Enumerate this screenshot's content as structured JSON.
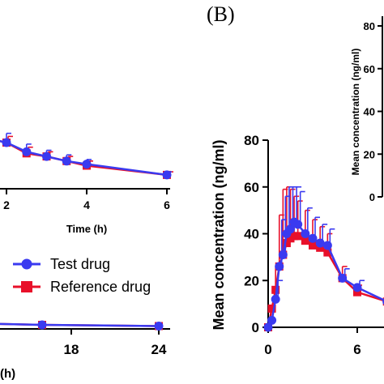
{
  "panel_label": "(B)",
  "legend": {
    "test": "Test drug",
    "reference": "Reference drug"
  },
  "colors": {
    "test": "#3a3af0",
    "reference": "#e8102a",
    "line": "#5533cc"
  },
  "chart_data": [
    {
      "name": "panel-a-inset",
      "type": "line",
      "xlabel": "Time (h)",
      "ylabel": "",
      "xlim": [
        0,
        6
      ],
      "xticks": [
        "2",
        "4",
        "6"
      ],
      "x": [
        1.5,
        2.0,
        2.5,
        3.0,
        3.5,
        4.0,
        6.0
      ],
      "series": [
        {
          "name": "Test drug",
          "values": [
            33,
            30,
            24,
            21,
            18,
            16,
            9
          ],
          "err": [
            7,
            6,
            5,
            4,
            4,
            3,
            2
          ]
        },
        {
          "name": "Reference drug",
          "values": [
            33,
            30,
            23,
            21,
            18,
            15,
            9
          ],
          "err": [
            4,
            4,
            4,
            3,
            3,
            3,
            2
          ]
        }
      ]
    },
    {
      "name": "panel-a-main",
      "type": "line",
      "xlabel": "(h)",
      "ylabel": "",
      "xlim": [
        12,
        24
      ],
      "xticks": [
        "18",
        "24"
      ],
      "x": [
        12,
        16,
        24
      ],
      "series": [
        {
          "name": "Test drug",
          "values": [
            3,
            2,
            1
          ]
        },
        {
          "name": "Reference drug",
          "values": [
            3,
            2,
            1
          ]
        }
      ]
    },
    {
      "name": "panel-b-main",
      "type": "line",
      "xlabel": "",
      "ylabel": "Mean concentration (ng/ml)",
      "xlim": [
        0,
        8
      ],
      "ylim": [
        0,
        80
      ],
      "xticks": [
        "0",
        "6"
      ],
      "yticks": [
        "0",
        "20",
        "40",
        "60",
        "80"
      ],
      "x": [
        0,
        0.25,
        0.5,
        0.75,
        1.0,
        1.25,
        1.5,
        1.75,
        2.0,
        2.5,
        3.0,
        3.5,
        4.0,
        5.0,
        6.0,
        8.0
      ],
      "series": [
        {
          "name": "Test drug",
          "values": [
            0,
            3,
            12,
            26,
            31,
            40,
            42,
            45,
            44,
            40,
            38,
            36,
            35,
            21,
            17,
            11
          ],
          "err": [
            0,
            0,
            8,
            20,
            25,
            20,
            18,
            15,
            14,
            11,
            9,
            8,
            7,
            4,
            3,
            2
          ]
        },
        {
          "name": "Reference drug",
          "values": [
            0,
            8,
            16,
            26,
            31,
            36,
            38,
            39,
            39,
            37,
            35,
            34,
            32,
            21,
            15,
            11
          ],
          "err": [
            0,
            0,
            10,
            22,
            28,
            24,
            21,
            17,
            15,
            13,
            11,
            9,
            8,
            5,
            3,
            2
          ]
        }
      ]
    },
    {
      "name": "panel-b-inset",
      "type": "line",
      "xlabel": "",
      "ylabel": "Mean concentration (ng/ml)",
      "ylim": [
        0,
        80
      ],
      "yticks": [
        "0",
        "20",
        "40",
        "60",
        "80"
      ]
    }
  ]
}
